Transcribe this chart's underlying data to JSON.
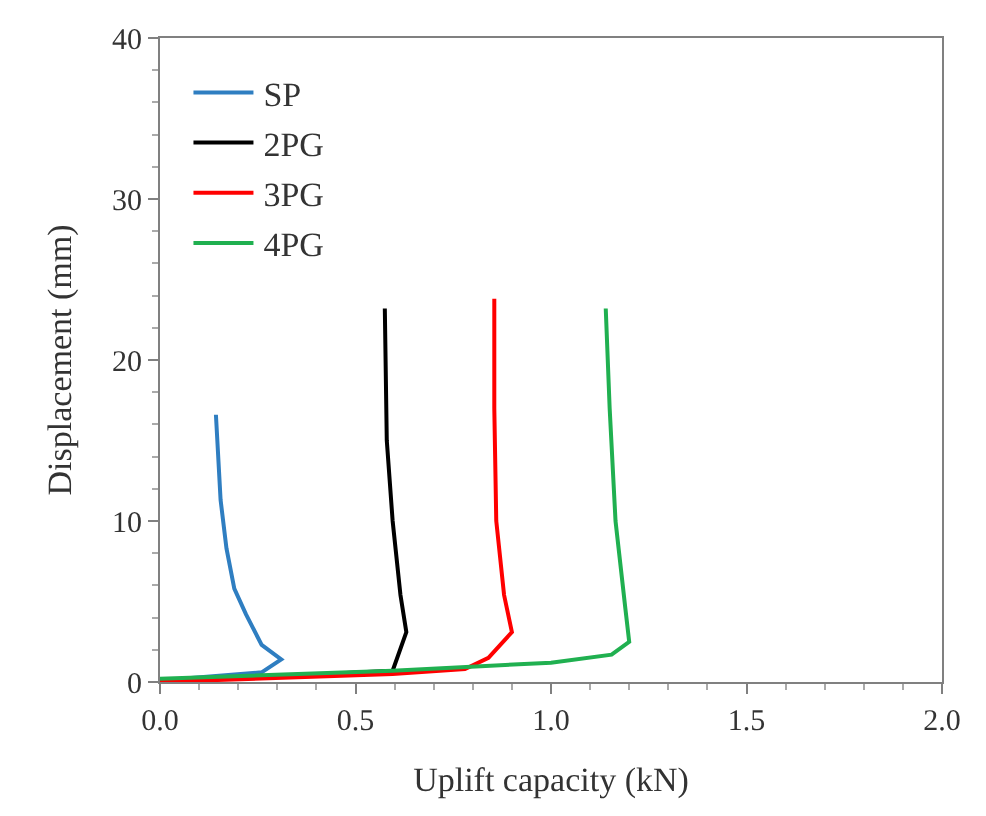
{
  "chart_data": {
    "type": "line",
    "xlabel": "Uplift capacity (kN)",
    "ylabel": "Displacement (mm)",
    "xlim": [
      0,
      2
    ],
    "ylim": [
      0,
      40
    ],
    "xticks": [
      {
        "value": 0,
        "label": "0.0"
      },
      {
        "value": 0.5,
        "label": "0.5"
      },
      {
        "value": 1,
        "label": "1.0"
      },
      {
        "value": 1.5,
        "label": "1.5"
      },
      {
        "value": 2,
        "label": "2.0"
      }
    ],
    "yticks": [
      0,
      10,
      20,
      30,
      40
    ],
    "legend": "top left",
    "marker": "none",
    "line_style": "solid",
    "series": [
      {
        "name": "SP",
        "color": "#2f7ec1",
        "x": [
          0,
          0.26,
          0.31,
          0.26,
          0.22,
          0.19,
          0.17,
          0.155,
          0.143
        ],
        "values": [
          0.1,
          0.6,
          1.4,
          2.3,
          4.2,
          5.8,
          8.3,
          11.3,
          16.6
        ]
      },
      {
        "name": "2PG",
        "color": "#000000",
        "x": [
          0,
          0.595,
          0.63,
          0.615,
          0.595,
          0.58,
          0.575
        ],
        "values": [
          0,
          0.7,
          3.1,
          5.4,
          10,
          15,
          23.2
        ]
      },
      {
        "name": "3PG",
        "color": "#ff0000",
        "x": [
          0,
          0.595,
          0.78,
          0.84,
          0.9,
          0.88,
          0.86,
          0.855,
          0.855
        ],
        "values": [
          0,
          0.5,
          0.8,
          1.5,
          3.1,
          5.4,
          10,
          17,
          23.8
        ]
      },
      {
        "name": "4PG",
        "color": "#20b050",
        "x": [
          0,
          0.595,
          1.0,
          1.155,
          1.2,
          1.19,
          1.165,
          1.15,
          1.14
        ],
        "values": [
          0.2,
          0.7,
          1.2,
          1.7,
          2.5,
          4.6,
          10,
          17,
          23.2
        ]
      }
    ]
  }
}
